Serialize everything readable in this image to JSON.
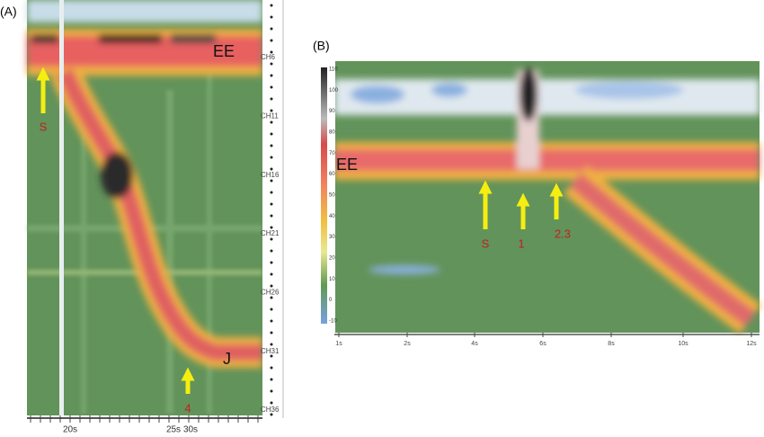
{
  "panel_a": {
    "label": "(A)",
    "markers": {
      "ee": "EE",
      "s": "S",
      "j": "J",
      "n4": "4"
    },
    "channels": [
      "CH6",
      "CH11",
      "CH16",
      "CH21",
      "CH26",
      "CH31",
      "CH36"
    ],
    "time_labels": [
      "20s",
      "25s",
      "30s"
    ]
  },
  "panel_b": {
    "label": "(B)",
    "markers": {
      "ee": "EE",
      "s": "S",
      "n1": "1",
      "n23": "2.3"
    },
    "colorbar": [
      110,
      100,
      90,
      80,
      70,
      60,
      50,
      40,
      30,
      20,
      10,
      0,
      -10
    ],
    "time_labels": [
      "1s",
      "2s",
      "4s",
      "6s",
      "8s",
      "10s",
      "12s"
    ]
  }
}
